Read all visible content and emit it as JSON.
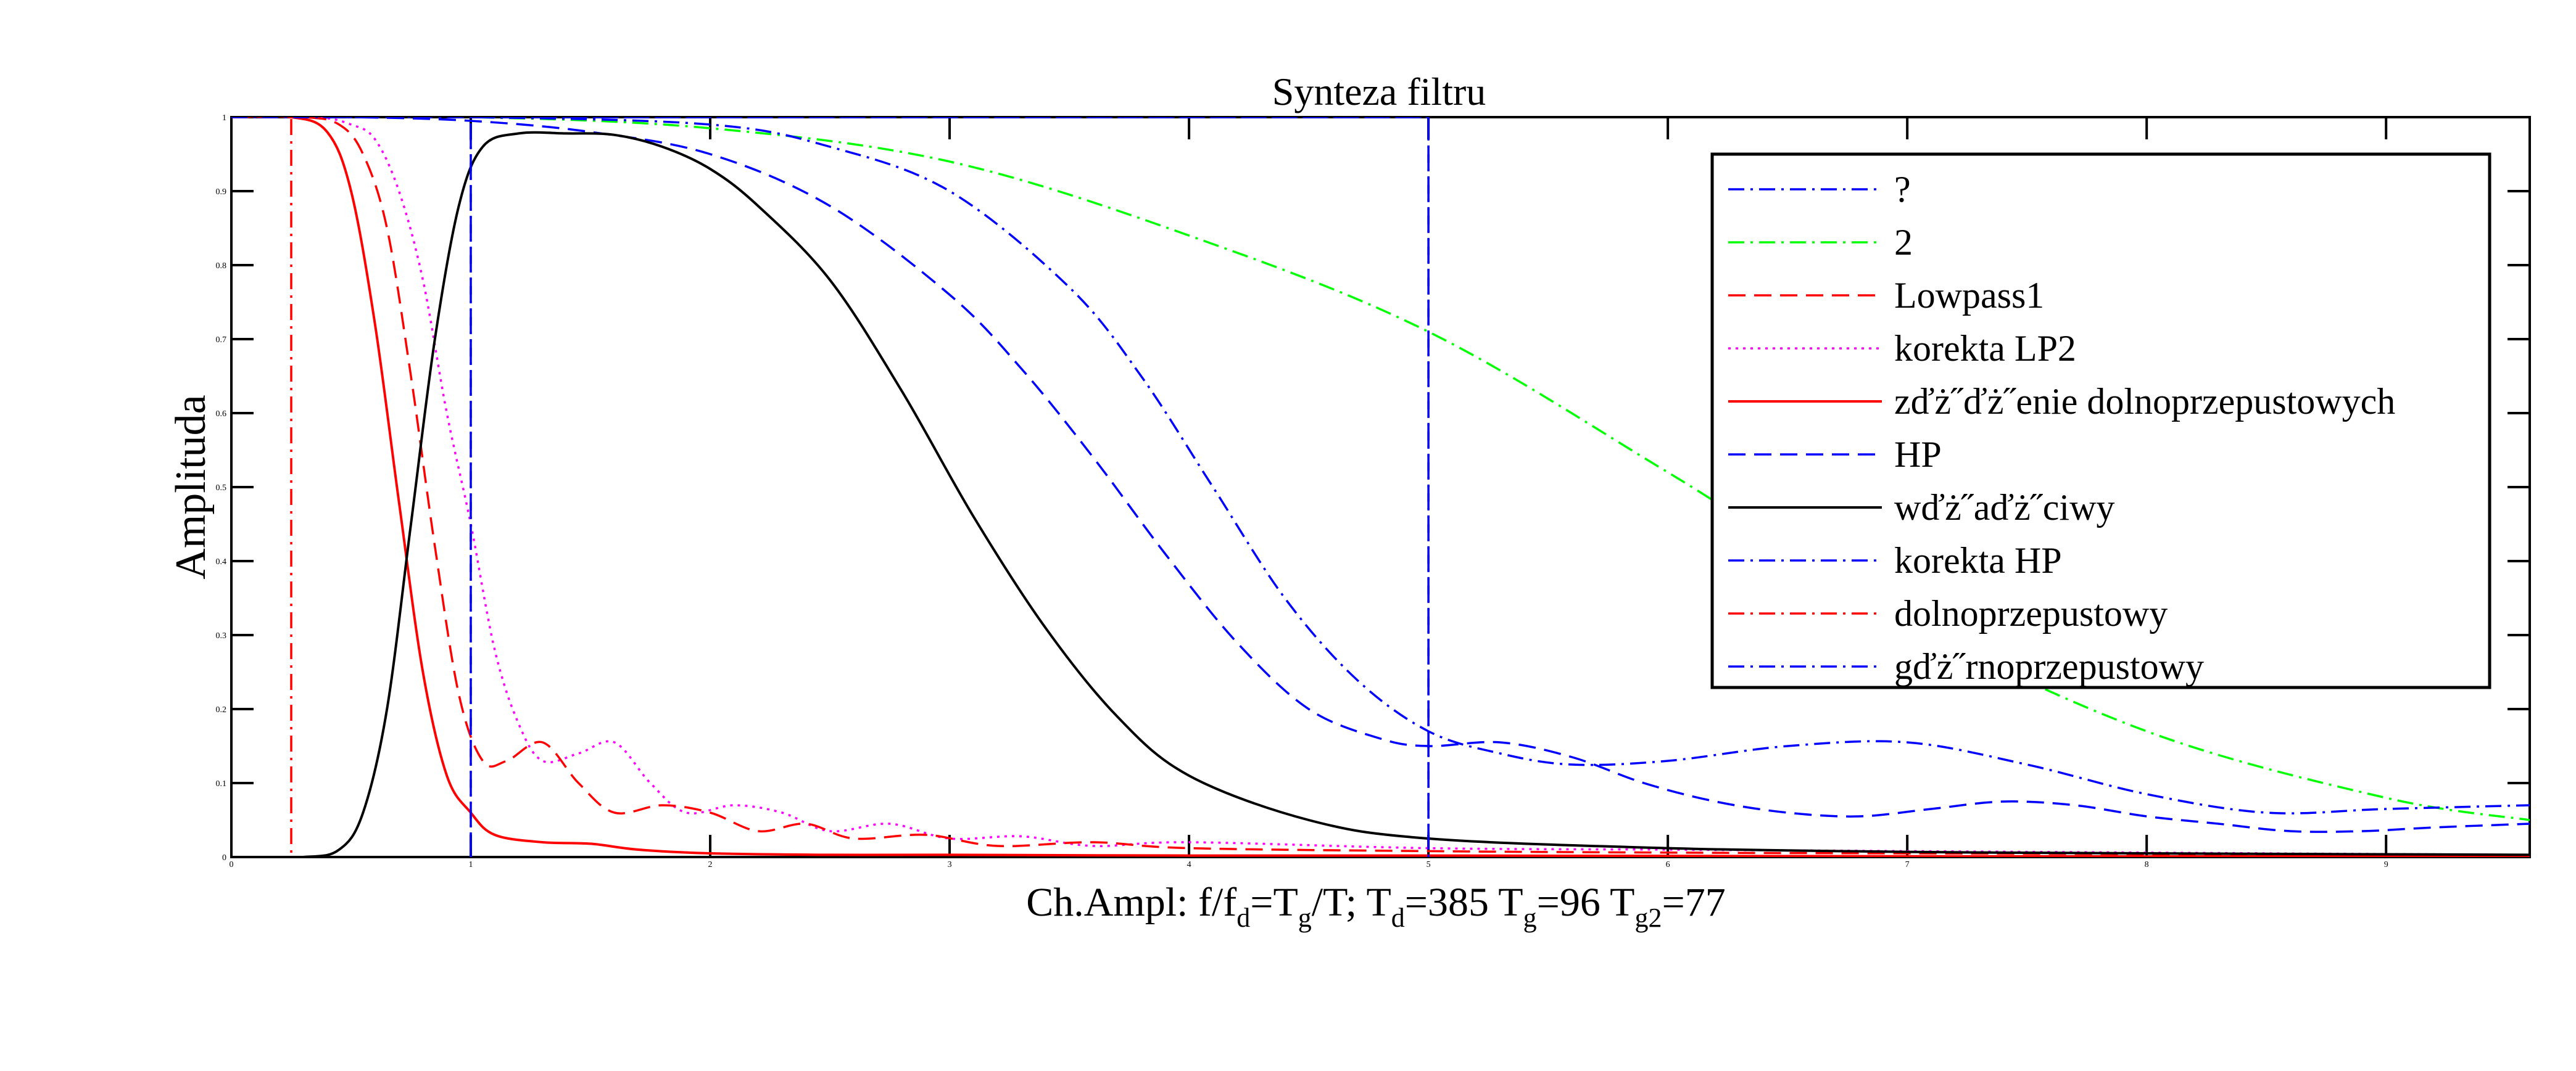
{
  "chart_data": {
    "type": "line",
    "title": "Synteza filtru",
    "ylabel": "Amplituda",
    "xlabel": {
      "parts": [
        {
          "t": "Ch.Ampl: f/f",
          "sub": false
        },
        {
          "t": "d",
          "sub": true
        },
        {
          "t": "=T",
          "sub": false
        },
        {
          "t": "g",
          "sub": true
        },
        {
          "t": "/T; T",
          "sub": false
        },
        {
          "t": "d",
          "sub": true
        },
        {
          "t": "=385 T",
          "sub": false
        },
        {
          "t": "g",
          "sub": true
        },
        {
          "t": "=96 T",
          "sub": false
        },
        {
          "t": "g2",
          "sub": true
        },
        {
          "t": "=77",
          "sub": false
        }
      ]
    },
    "xlim": [
      0,
      9.6
    ],
    "ylim": [
      0,
      1
    ],
    "xticks": [
      "0",
      "1",
      "2",
      "3",
      "4",
      "5",
      "6",
      "7",
      "8",
      "9"
    ],
    "yticks": [
      "0",
      "0.1",
      "0.2",
      "0.3",
      "0.4",
      "0.5",
      "0.6",
      "0.7",
      "0.8",
      "0.9",
      "1"
    ],
    "grid": false,
    "legend_position": "top-right",
    "series": [
      {
        "name": "?",
        "color": "#0000ff",
        "dash": "dashdot",
        "kind": "vline",
        "x": [
          1,
          1,
          5,
          5
        ],
        "y": [
          0,
          1,
          1,
          0
        ]
      },
      {
        "name": "2",
        "color": "#00ff00",
        "dash": "dashdot",
        "x": [
          0,
          1,
          2,
          3,
          4,
          5,
          6,
          7,
          8,
          9,
          9.6
        ],
        "y": [
          1,
          1,
          0.985,
          0.94,
          0.84,
          0.71,
          0.52,
          0.32,
          0.17,
          0.08,
          0.05
        ]
      },
      {
        "name": "Lowpass1",
        "color": "#ff0000",
        "dash": "dash",
        "x": [
          0,
          0.3,
          0.45,
          0.55,
          0.65,
          0.75,
          0.85,
          0.95,
          1.05,
          1.15,
          1.3,
          1.45,
          1.6,
          1.8,
          2.0,
          2.2,
          2.4,
          2.6,
          2.9,
          3.2,
          3.6,
          4.0,
          5.0,
          6.0,
          7.0,
          8.0,
          9.6
        ],
        "y": [
          1,
          1,
          0.99,
          0.95,
          0.85,
          0.65,
          0.42,
          0.22,
          0.13,
          0.13,
          0.155,
          0.1,
          0.06,
          0.07,
          0.06,
          0.035,
          0.045,
          0.025,
          0.03,
          0.015,
          0.02,
          0.012,
          0.008,
          0.006,
          0.005,
          0.004,
          0.003
        ]
      },
      {
        "name": "korekta LP2",
        "color": "#ff00ff",
        "dash": "dot",
        "x": [
          0,
          0.35,
          0.5,
          0.6,
          0.7,
          0.8,
          0.9,
          1.0,
          1.1,
          1.2,
          1.3,
          1.45,
          1.6,
          1.75,
          1.9,
          2.1,
          2.3,
          2.5,
          2.75,
          3.0,
          3.3,
          3.6,
          4.0,
          5.0,
          6.0,
          7.0,
          8.0,
          9.0,
          9.6
        ],
        "y": [
          1,
          1,
          0.99,
          0.97,
          0.9,
          0.78,
          0.6,
          0.45,
          0.28,
          0.18,
          0.13,
          0.14,
          0.155,
          0.1,
          0.06,
          0.07,
          0.06,
          0.035,
          0.045,
          0.025,
          0.028,
          0.015,
          0.02,
          0.012,
          0.01,
          0.008,
          0.006,
          0.004,
          0.003
        ]
      },
      {
        "name": "zďż˝ďż˝enie dolnoprzepustowych",
        "color": "#ff0000",
        "dash": "solid",
        "x": [
          0,
          0.25,
          0.4,
          0.5,
          0.6,
          0.7,
          0.8,
          0.9,
          1.0,
          1.1,
          1.3,
          1.5,
          1.7,
          2.0,
          2.5,
          3.0,
          4.0,
          5.0,
          7.0,
          9.6
        ],
        "y": [
          1,
          1,
          0.98,
          0.9,
          0.72,
          0.48,
          0.25,
          0.11,
          0.06,
          0.03,
          0.02,
          0.018,
          0.01,
          0.005,
          0.003,
          0.003,
          0.002,
          0.002,
          0.001,
          0.001
        ]
      },
      {
        "name": "HP",
        "color": "#0000ff",
        "dash": "dash",
        "x": [
          0,
          0.5,
          1.0,
          1.5,
          2.0,
          2.5,
          3.0,
          3.3,
          3.6,
          3.9,
          4.2,
          4.5,
          4.8,
          5.0,
          5.3,
          5.6,
          5.9,
          6.2,
          6.5,
          6.8,
          7.1,
          7.4,
          7.7,
          8.0,
          8.3,
          8.6,
          8.9,
          9.2,
          9.6
        ],
        "y": [
          1,
          1,
          0.995,
          0.98,
          0.95,
          0.88,
          0.76,
          0.66,
          0.54,
          0.41,
          0.29,
          0.2,
          0.16,
          0.15,
          0.155,
          0.135,
          0.1,
          0.075,
          0.06,
          0.055,
          0.065,
          0.075,
          0.07,
          0.055,
          0.045,
          0.035,
          0.035,
          0.04,
          0.045
        ]
      },
      {
        "name": "wďż˝aďż˝ciwy",
        "color": "#000000",
        "dash": "solid",
        "x": [
          0,
          0.3,
          0.45,
          0.55,
          0.65,
          0.75,
          0.85,
          0.95,
          1.05,
          1.2,
          1.4,
          1.6,
          1.8,
          2.0,
          2.2,
          2.5,
          2.8,
          3.1,
          3.4,
          3.7,
          4.0,
          4.5,
          5.0,
          6.0,
          7.0,
          8.0,
          9.6
        ],
        "y": [
          0,
          0,
          0.01,
          0.06,
          0.2,
          0.45,
          0.7,
          0.88,
          0.96,
          0.978,
          0.978,
          0.976,
          0.96,
          0.93,
          0.88,
          0.78,
          0.63,
          0.46,
          0.31,
          0.19,
          0.11,
          0.05,
          0.025,
          0.012,
          0.007,
          0.005,
          0.003
        ]
      },
      {
        "name": "korekta HP",
        "color": "#0000ff",
        "dash": "dashdot",
        "x": [
          0,
          1,
          2,
          2.5,
          3.0,
          3.5,
          3.8,
          4.1,
          4.4,
          4.7,
          5.0,
          5.3,
          5.6,
          6.0,
          6.5,
          7.0,
          7.5,
          8.0,
          8.5,
          9.0,
          9.6
        ],
        "y": [
          1,
          1,
          0.99,
          0.96,
          0.9,
          0.77,
          0.65,
          0.5,
          0.35,
          0.24,
          0.17,
          0.14,
          0.125,
          0.13,
          0.15,
          0.155,
          0.125,
          0.085,
          0.06,
          0.065,
          0.07
        ]
      },
      {
        "name": "dolnoprzepustowy",
        "color": "#ff0000",
        "dash": "dashdot",
        "kind": "vline",
        "x": [
          0,
          0.25,
          0.25
        ],
        "y": [
          1,
          1,
          0
        ]
      },
      {
        "name": "gďż˝rnoprzepustowy",
        "color": "#0000ff",
        "dash": "dashdot",
        "kind": "vline",
        "x": [
          0,
          1,
          1,
          1,
          5,
          5
        ],
        "y": [
          1,
          1,
          0,
          1,
          1,
          0
        ]
      }
    ]
  }
}
